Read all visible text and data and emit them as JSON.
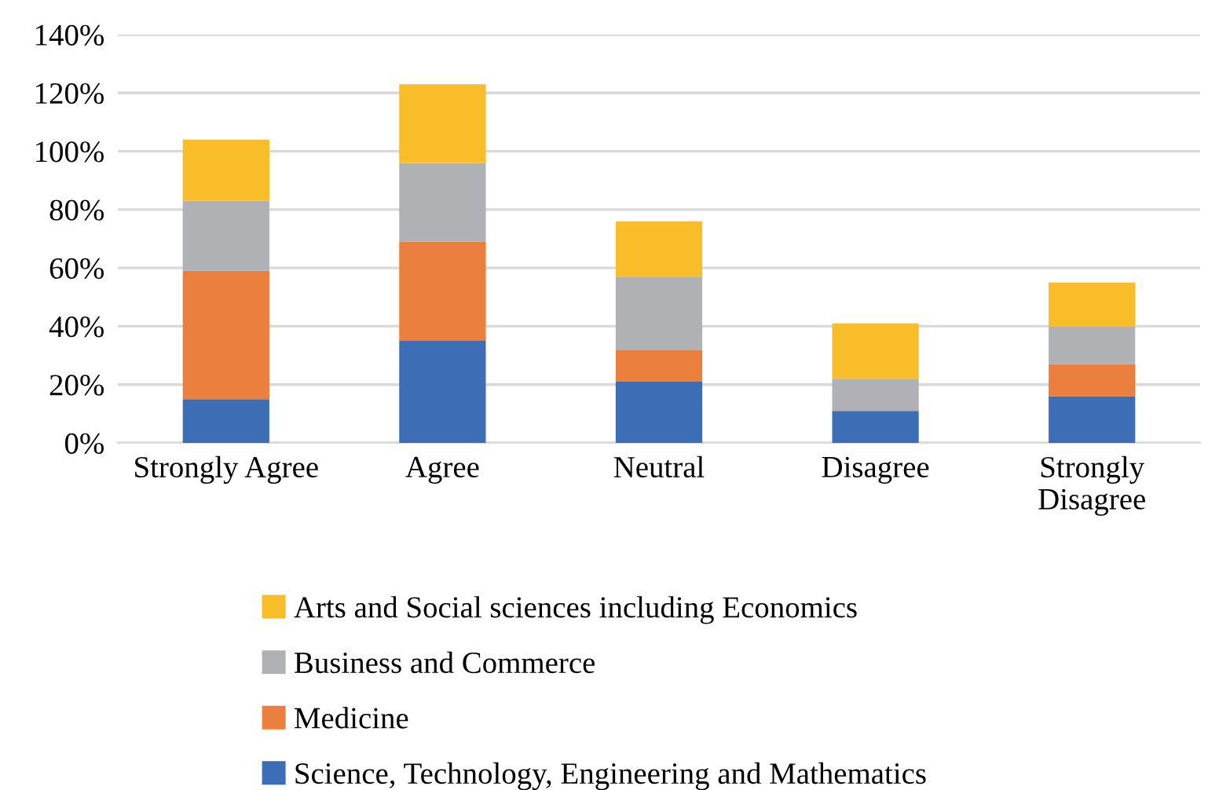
{
  "chart_data": {
    "type": "bar",
    "stacked": true,
    "categories": [
      "Strongly Agree",
      "Agree",
      "Neutral",
      "Disagree",
      "Strongly\nDisagree"
    ],
    "series": [
      {
        "name": "Science, Technology, Engineering and Mathematics",
        "color": "#3d6eb5",
        "values": [
          15,
          35,
          21,
          11,
          16
        ]
      },
      {
        "name": "Medicine",
        "color": "#eb7f3d",
        "values": [
          44,
          34,
          11,
          0,
          11
        ]
      },
      {
        "name": "Business and Commerce",
        "color": "#b0b1b4",
        "values": [
          24,
          27,
          25,
          11,
          13
        ]
      },
      {
        "name": "Arts and Social sciences including Economics",
        "color": "#f8bd28",
        "values": [
          21,
          27,
          19,
          19,
          15
        ]
      }
    ],
    "ylim": [
      0,
      140
    ],
    "yticks": [
      {
        "value": 0,
        "label": "0%"
      },
      {
        "value": 20,
        "label": "20%"
      },
      {
        "value": 40,
        "label": "40%"
      },
      {
        "value": 60,
        "label": "60%"
      },
      {
        "value": 80,
        "label": "80%"
      },
      {
        "value": 100,
        "label": "100%"
      },
      {
        "value": 120,
        "label": "120%"
      },
      {
        "value": 140,
        "label": "140%"
      }
    ],
    "grid": "y",
    "legend": "bottom"
  }
}
